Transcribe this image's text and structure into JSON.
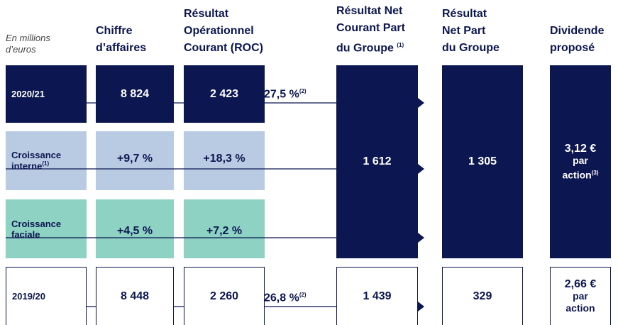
{
  "note": {
    "lines": [
      "En millions",
      "d’euros"
    ]
  },
  "columns": [
    {
      "lines": [
        "Chiffre",
        "d’affaires"
      ]
    },
    {
      "lines": [
        "Résultat",
        "Opérationnel",
        "Courant (ROC)"
      ]
    },
    {
      "lines": [
        "Résultat Net",
        "Courant Part",
        "du Groupe"
      ],
      "note": "(1)"
    },
    {
      "lines": [
        "Résultat",
        "Net Part",
        "du Groupe"
      ]
    },
    {
      "lines": [
        "Dividende",
        "proposé"
      ]
    }
  ],
  "rows": [
    {
      "label": {
        "lines": [
          "2020/21"
        ]
      },
      "revenue": "8 824",
      "roc": "2 423",
      "margin": "27,5 %",
      "margin_note": "(2)"
    },
    {
      "label": {
        "lines": [
          "Croissance",
          "interne"
        ],
        "note": "(1)"
      },
      "revenue": "+9,7 %",
      "roc": "+18,3 %"
    },
    {
      "label": {
        "lines": [
          "Croissance",
          "faciale"
        ]
      },
      "revenue": "+4,5 %",
      "roc": "+7,2 %"
    },
    {
      "label": {
        "lines": [
          "2019/20"
        ]
      },
      "revenue": "8 448",
      "roc": "2 260",
      "margin": "26,8 %",
      "margin_note": "(2)",
      "rnc": "1 439",
      "rnpg": "329",
      "dividend": {
        "lines": [
          "2,66 €",
          "par",
          "action"
        ]
      }
    }
  ],
  "current": {
    "rnc": "1 612",
    "rnpg": "1 305",
    "dividend": {
      "lines": [
        "3,12 €",
        "par",
        "action"
      ],
      "note": "(3)"
    }
  }
}
